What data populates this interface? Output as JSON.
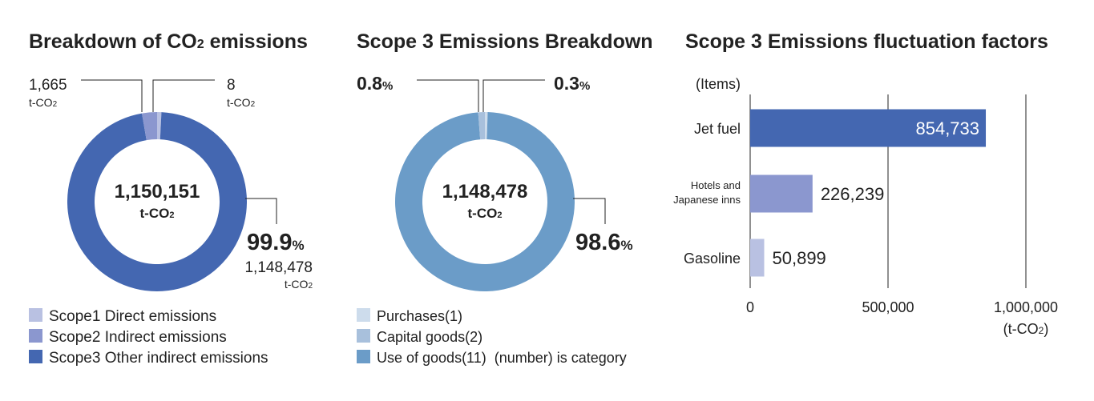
{
  "colors": {
    "scope1": "#b9c1e2",
    "scope2": "#8b97cf",
    "scope3": "#4467b1",
    "purchases": "#6b9cc8",
    "capital_goods": "#a8c0dc",
    "use_of_goods": "#cddcec",
    "bar_jet": "#4467b1",
    "bar_hotels": "#8b97cf",
    "bar_gasoline": "#b9c1e2"
  },
  "chart_data": [
    {
      "type": "pie",
      "title_main": "Breakdown of CO",
      "title_sub": "2",
      "title_tail": " emissions",
      "center_value": "1,150,151",
      "center_unit": "t-CO",
      "center_unit_sub": "2",
      "slices": [
        {
          "name": "Scope1 Direct emissions",
          "value": 8,
          "label_value": "8",
          "label_unit": "t-CO",
          "label_unit_sub": "2"
        },
        {
          "name": "Scope2 Indirect emissions",
          "value": 1665,
          "label_value": "1,665",
          "label_unit": "t-CO",
          "label_unit_sub": "2"
        },
        {
          "name": "Scope3 Other indirect emissions",
          "value": 1148478,
          "pct": "99.9",
          "pct_sign": "%",
          "label_value": "1,148,478",
          "label_unit": "t-CO",
          "label_unit_sub": "2"
        }
      ]
    },
    {
      "type": "pie",
      "title": "Scope 3 Emissions Breakdown",
      "center_value": "1,148,478",
      "center_unit": "t-CO",
      "center_unit_sub": "2",
      "slices": [
        {
          "name": "Purchases(1)",
          "value": 98.6,
          "pct": "98.6",
          "pct_sign": "%"
        },
        {
          "name": "Capital goods(2)",
          "value": 0.8,
          "pct": "0.8",
          "pct_sign": "%"
        },
        {
          "name": "Use of goods(11)",
          "value": 0.3,
          "pct": "0.3",
          "pct_sign": "%"
        }
      ],
      "legend_note": "(number) is category"
    },
    {
      "type": "bar",
      "orientation": "horizontal",
      "title": "Scope 3 Emissions fluctuation factors",
      "ylabel": "(Items)",
      "xlabel": "(t-CO",
      "xlabel_sub": "2",
      "xlabel_tail": ")",
      "xlim": [
        0,
        1000000
      ],
      "xticks": [
        0,
        500000,
        1000000
      ],
      "xtick_labels": [
        "0",
        "500,000",
        "1,000,000"
      ],
      "categories": [
        "Jet fuel",
        "Hotels and Japanese inns",
        "Gasoline"
      ],
      "category_lines": [
        [
          "Jet fuel"
        ],
        [
          "Hotels and",
          "Japanese inns"
        ],
        [
          "Gasoline"
        ]
      ],
      "values": [
        854733,
        226239,
        50899
      ],
      "value_labels": [
        "854,733",
        "226,239",
        "50,899"
      ]
    }
  ]
}
